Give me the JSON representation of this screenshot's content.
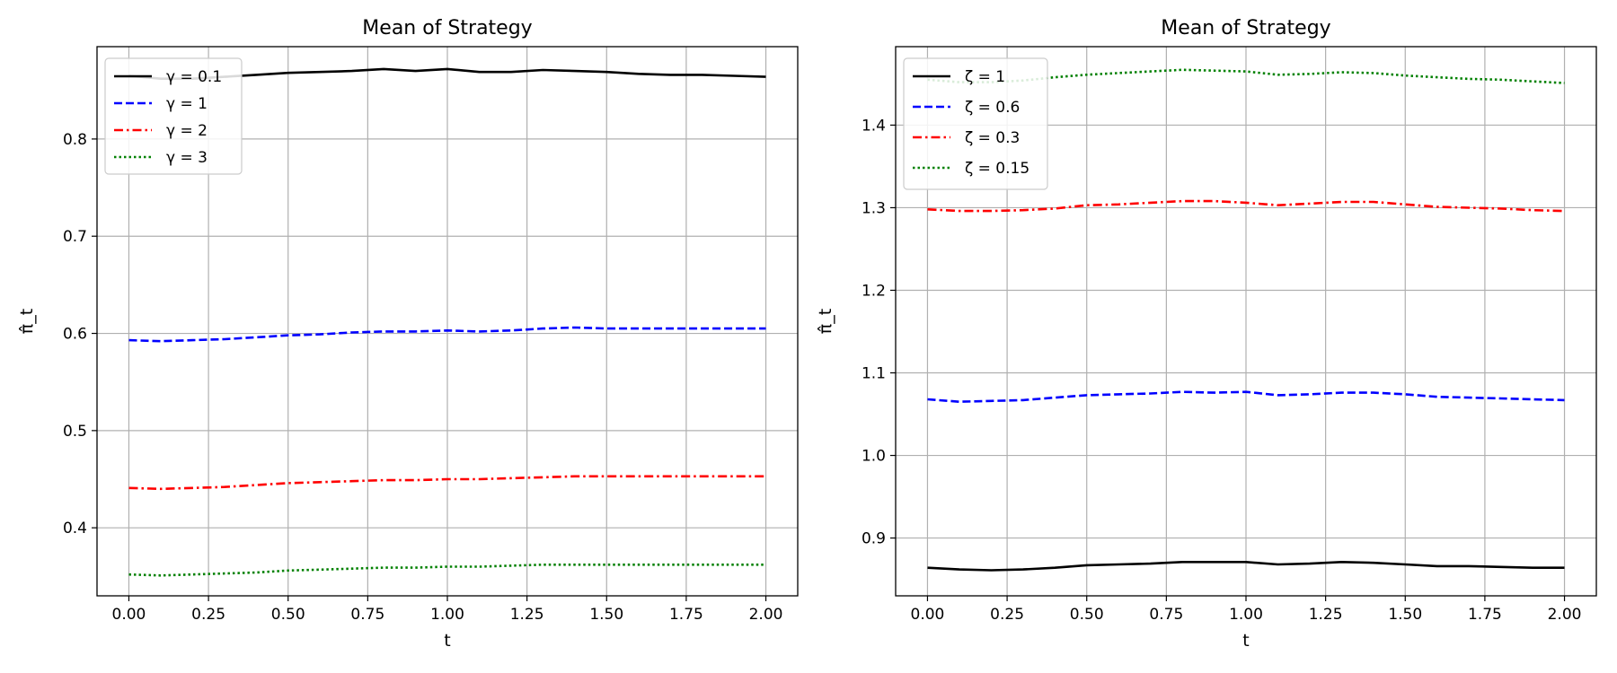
{
  "chart_data": [
    {
      "type": "line",
      "title": "Mean of Strategy",
      "xlabel": "t",
      "ylabel": "π̂_t",
      "xlim": [
        -0.1,
        2.1
      ],
      "ylim": [
        0.33,
        0.895
      ],
      "xticks": [
        0,
        0.25,
        0.5,
        0.75,
        1.0,
        1.25,
        1.5,
        1.75,
        2.0
      ],
      "xtick_labels": [
        "0.00",
        "0.25",
        "0.50",
        "0.75",
        "1.00",
        "1.25",
        "1.50",
        "1.75",
        "2.00"
      ],
      "yticks": [
        0.4,
        0.5,
        0.6,
        0.7,
        0.8
      ],
      "ytick_labels": [
        "0.4",
        "0.5",
        "0.6",
        "0.7",
        "0.8"
      ],
      "grid": true,
      "legend_position": "upper-left",
      "x": [
        0,
        0.1,
        0.2,
        0.3,
        0.4,
        0.5,
        0.6,
        0.7,
        0.8,
        0.9,
        1.0,
        1.1,
        1.2,
        1.3,
        1.4,
        1.5,
        1.6,
        1.7,
        1.8,
        1.9,
        2.0
      ],
      "series": [
        {
          "name": "γ = 0.1",
          "color": "#000000",
          "dash": "solid",
          "values": [
            0.865,
            0.862,
            0.862,
            0.864,
            0.866,
            0.868,
            0.869,
            0.87,
            0.872,
            0.87,
            0.872,
            0.869,
            0.869,
            0.871,
            0.87,
            0.869,
            0.867,
            0.866,
            0.866,
            0.865,
            0.864
          ]
        },
        {
          "name": "γ = 1",
          "color": "#0000ff",
          "dash": "dashed",
          "values": [
            0.593,
            0.592,
            0.593,
            0.594,
            0.596,
            0.598,
            0.599,
            0.601,
            0.602,
            0.602,
            0.603,
            0.602,
            0.603,
            0.605,
            0.606,
            0.605,
            0.605,
            0.605,
            0.605,
            0.605,
            0.605
          ]
        },
        {
          "name": "γ = 2",
          "color": "#ff0000",
          "dash": "dashdot",
          "values": [
            0.441,
            0.44,
            0.441,
            0.442,
            0.444,
            0.446,
            0.447,
            0.448,
            0.449,
            0.449,
            0.45,
            0.45,
            0.451,
            0.452,
            0.453,
            0.453,
            0.453,
            0.453,
            0.453,
            0.453,
            0.453
          ]
        },
        {
          "name": "γ = 3",
          "color": "#008000",
          "dash": "dotted",
          "values": [
            0.352,
            0.351,
            0.352,
            0.353,
            0.354,
            0.356,
            0.357,
            0.358,
            0.359,
            0.359,
            0.36,
            0.36,
            0.361,
            0.362,
            0.362,
            0.362,
            0.362,
            0.362,
            0.362,
            0.362,
            0.362
          ]
        }
      ]
    },
    {
      "type": "line",
      "title": "Mean of Strategy",
      "xlabel": "t",
      "ylabel": "π̂_t",
      "xlim": [
        -0.1,
        2.1
      ],
      "ylim": [
        0.83,
        1.495
      ],
      "xticks": [
        0,
        0.25,
        0.5,
        0.75,
        1.0,
        1.25,
        1.5,
        1.75,
        2.0
      ],
      "xtick_labels": [
        "0.00",
        "0.25",
        "0.50",
        "0.75",
        "1.00",
        "1.25",
        "1.50",
        "1.75",
        "2.00"
      ],
      "yticks": [
        0.9,
        1.0,
        1.1,
        1.2,
        1.3,
        1.4
      ],
      "ytick_labels": [
        "0.9",
        "1.0",
        "1.1",
        "1.2",
        "1.3",
        "1.4"
      ],
      "grid": true,
      "legend_position": "upper-left",
      "x": [
        0,
        0.1,
        0.2,
        0.3,
        0.4,
        0.5,
        0.6,
        0.7,
        0.8,
        0.9,
        1.0,
        1.1,
        1.2,
        1.3,
        1.4,
        1.5,
        1.6,
        1.7,
        1.8,
        1.9,
        2.0
      ],
      "series": [
        {
          "name": "ζ = 1",
          "color": "#000000",
          "dash": "solid",
          "values": [
            0.864,
            0.862,
            0.861,
            0.862,
            0.864,
            0.867,
            0.868,
            0.869,
            0.871,
            0.871,
            0.871,
            0.868,
            0.869,
            0.871,
            0.87,
            0.868,
            0.866,
            0.866,
            0.865,
            0.864,
            0.864
          ]
        },
        {
          "name": "ζ = 0.6",
          "color": "#0000ff",
          "dash": "dashed",
          "values": [
            1.068,
            1.065,
            1.066,
            1.067,
            1.07,
            1.073,
            1.074,
            1.075,
            1.077,
            1.076,
            1.077,
            1.073,
            1.074,
            1.076,
            1.076,
            1.074,
            1.071,
            1.07,
            1.069,
            1.068,
            1.067
          ]
        },
        {
          "name": "ζ = 0.3",
          "color": "#ff0000",
          "dash": "dashdot",
          "values": [
            1.298,
            1.296,
            1.296,
            1.297,
            1.299,
            1.303,
            1.304,
            1.306,
            1.308,
            1.308,
            1.306,
            1.303,
            1.305,
            1.307,
            1.307,
            1.304,
            1.301,
            1.3,
            1.299,
            1.297,
            1.296
          ]
        },
        {
          "name": "ζ = 0.15",
          "color": "#008000",
          "dash": "dotted",
          "values": [
            1.455,
            1.452,
            1.452,
            1.454,
            1.458,
            1.461,
            1.463,
            1.465,
            1.467,
            1.466,
            1.465,
            1.461,
            1.462,
            1.464,
            1.463,
            1.46,
            1.458,
            1.456,
            1.455,
            1.453,
            1.451
          ]
        }
      ]
    }
  ]
}
